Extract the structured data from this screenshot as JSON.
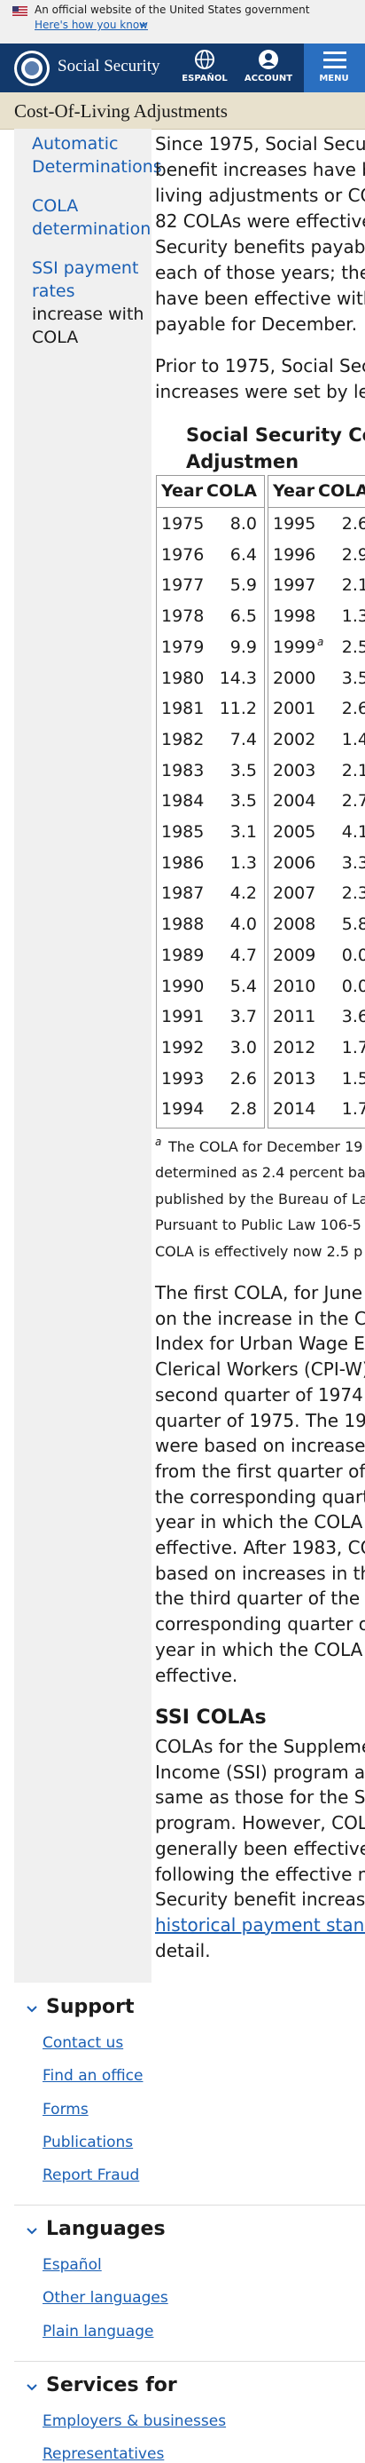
{
  "banner": {
    "text": "An official website of the United States government",
    "link": "Here's how you know"
  },
  "header": {
    "brand": "Social Security",
    "nav": [
      "ESPAÑOL",
      "ACCOUNT",
      "MENU"
    ]
  },
  "page_title": "Cost-Of-Living Adjustments",
  "sidebar": {
    "links": [
      "Automatic Determinations",
      "COLA determination"
    ],
    "ssi_link": "SSI payment rates",
    "ssi_text": "increase with COLA"
  },
  "main": {
    "para1": [
      "Since 1975, Social Secur",
      "benefit increases have b",
      "living adjustments or CO",
      "82 COLAs were effective",
      "Security benefits payable",
      "each of those years; ther",
      "have been effective with",
      "payable for December."
    ],
    "para2": [
      "Prior to 1975, Social Secu",
      "increases were set by leg"
    ],
    "table": {
      "title": [
        "Social Security Cos",
        "Adjustmen"
      ],
      "headers": [
        "Year",
        "COLA"
      ],
      "left": [
        [
          1975,
          "8.0"
        ],
        [
          1976,
          "6.4"
        ],
        [
          1977,
          "5.9"
        ],
        [
          1978,
          "6.5"
        ],
        [
          1979,
          "9.9"
        ],
        [
          1980,
          "14.3"
        ],
        [
          1981,
          "11.2"
        ],
        [
          1982,
          "7.4"
        ],
        [
          1983,
          "3.5"
        ],
        [
          1984,
          "3.5"
        ],
        [
          1985,
          "3.1"
        ],
        [
          1986,
          "1.3"
        ],
        [
          1987,
          "4.2"
        ],
        [
          1988,
          "4.0"
        ],
        [
          1989,
          "4.7"
        ],
        [
          1990,
          "5.4"
        ],
        [
          1991,
          "3.7"
        ],
        [
          1992,
          "3.0"
        ],
        [
          1993,
          "2.6"
        ],
        [
          1994,
          "2.8"
        ]
      ],
      "right": [
        [
          1995,
          "2.6"
        ],
        [
          1996,
          "2.9"
        ],
        [
          1997,
          "2.1"
        ],
        [
          1998,
          "1.3"
        ],
        [
          1999,
          "2.5",
          "a"
        ],
        [
          2000,
          "3.5"
        ],
        [
          2001,
          "2.6"
        ],
        [
          2002,
          "1.4"
        ],
        [
          2003,
          "2.1"
        ],
        [
          2004,
          "2.7"
        ],
        [
          2005,
          "4.1"
        ],
        [
          2006,
          "3.3"
        ],
        [
          2007,
          "2.3"
        ],
        [
          2008,
          "5.8"
        ],
        [
          2009,
          "0.0"
        ],
        [
          2010,
          "0.0"
        ],
        [
          2011,
          "3.6"
        ],
        [
          2012,
          "1.7"
        ],
        [
          2013,
          "1.5"
        ],
        [
          2014,
          "1.7"
        ]
      ]
    },
    "footnote": {
      "marker": "a",
      "lines": [
        "The COLA for December 19",
        "determined as 2.4 percent ba",
        "published by the Bureau of La",
        "Pursuant to Public Law 106-5",
        "COLA is effectively now 2.5 p"
      ]
    },
    "para3": [
      "The first COLA, for June 1",
      "on the increase in the Co",
      "Index for Urban Wage Ea",
      "Clerical Workers (CPI-W)",
      "second quarter of 1974 t",
      "quarter of 1975. The 197",
      "were based on increases",
      "from the first quarter of t",
      "the corresponding quarte",
      "year in which the COLA b",
      "effective. After 1983, CO",
      "based on increases in the",
      "the third quarter of the p",
      "corresponding quarter of",
      "year in which the COLA b",
      "effective."
    ],
    "ssi_heading": "SSI COLAs",
    "para4": [
      "COLAs for the Suppleme",
      "Income (SSI) program are",
      "same as those for the So",
      "program. However, COLA",
      "generally been effective",
      "following the effective m",
      "Security benefit increase"
    ],
    "para4_link": "historical payment stand",
    "para4_end": "detail."
  },
  "footer": [
    {
      "heading": "Support",
      "links": [
        "Contact us",
        "Find an office",
        "Forms",
        "Publications",
        "Report Fraud"
      ]
    },
    {
      "heading": "Languages",
      "links": [
        "Español",
        "Other languages",
        "Plain language"
      ]
    },
    {
      "heading": "Services for",
      "links": [
        "Employers & businesses",
        "Representatives"
      ]
    }
  ]
}
